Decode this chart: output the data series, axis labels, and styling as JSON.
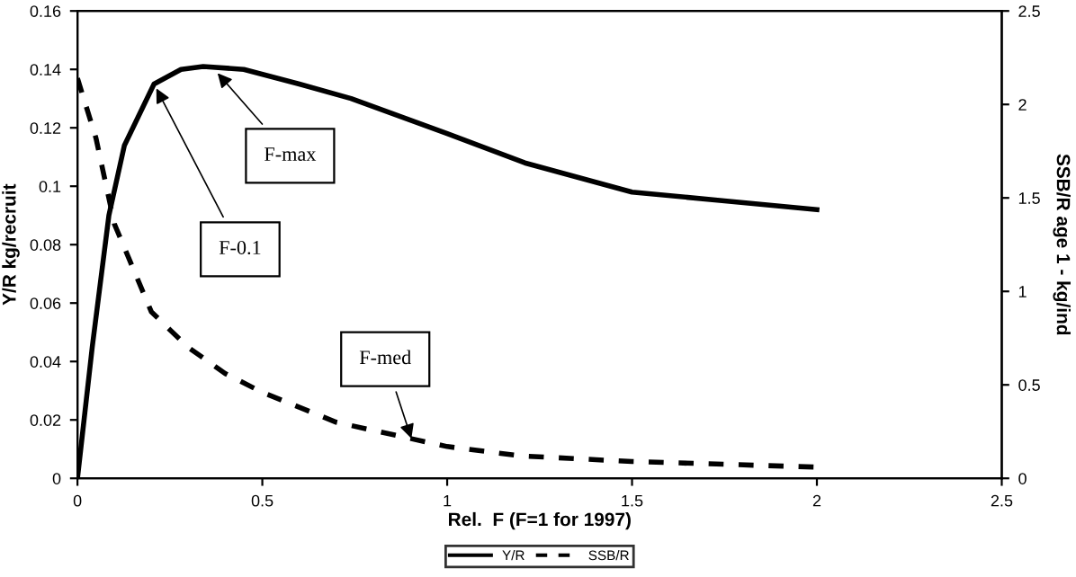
{
  "chart_data": {
    "type": "line",
    "xlabel": "Rel.  F (F=1 for 1997)",
    "ylabel": "Y/R kg/recruit",
    "y2label": "SSB/R age 1 - kg/ind",
    "xlim": [
      0,
      2.5
    ],
    "xticks": [
      0,
      0.5,
      1,
      1.5,
      2,
      2.5
    ],
    "ylim": [
      0,
      0.16
    ],
    "yticks": [
      0,
      0.02,
      0.04,
      0.06,
      0.08,
      0.1,
      0.12,
      0.14,
      0.16
    ],
    "y2lim": [
      0,
      2.5
    ],
    "y2ticks": [
      0,
      0.5,
      1,
      1.5,
      2,
      2.5
    ],
    "grid": false,
    "legend": "bottom",
    "series": [
      {
        "name": "Y/R",
        "color": "#000000",
        "line_style": "solid",
        "x": [
          0,
          0.04,
          0.085,
          0.127,
          0.207,
          0.28,
          0.34,
          0.45,
          0.6,
          0.74,
          1.0,
          1.21,
          1.5,
          1.75,
          2.0
        ],
        "values": [
          0,
          0.045,
          0.09,
          0.114,
          0.135,
          0.14,
          0.141,
          0.14,
          0.135,
          0.13,
          0.118,
          0.108,
          0.098,
          0.095,
          0.092
        ]
      },
      {
        "name": "SSB/R",
        "color": "#000000",
        "line_style": "dashed",
        "axis": "y2",
        "x": [
          0,
          0.05,
          0.1,
          0.2,
          0.3,
          0.4,
          0.5,
          0.7,
          1.0,
          1.2,
          1.5,
          2.0
        ],
        "values": [
          2.14,
          1.82,
          1.36,
          0.89,
          0.7,
          0.56,
          0.46,
          0.3,
          0.17,
          0.12,
          0.09,
          0.06
        ]
      }
    ],
    "annotations": [
      {
        "text": "F-max",
        "x": 0.37,
        "y": 0.14
      },
      {
        "text": "F-0.1",
        "x": 0.207,
        "y": 0.135
      },
      "F-med"
    ]
  }
}
